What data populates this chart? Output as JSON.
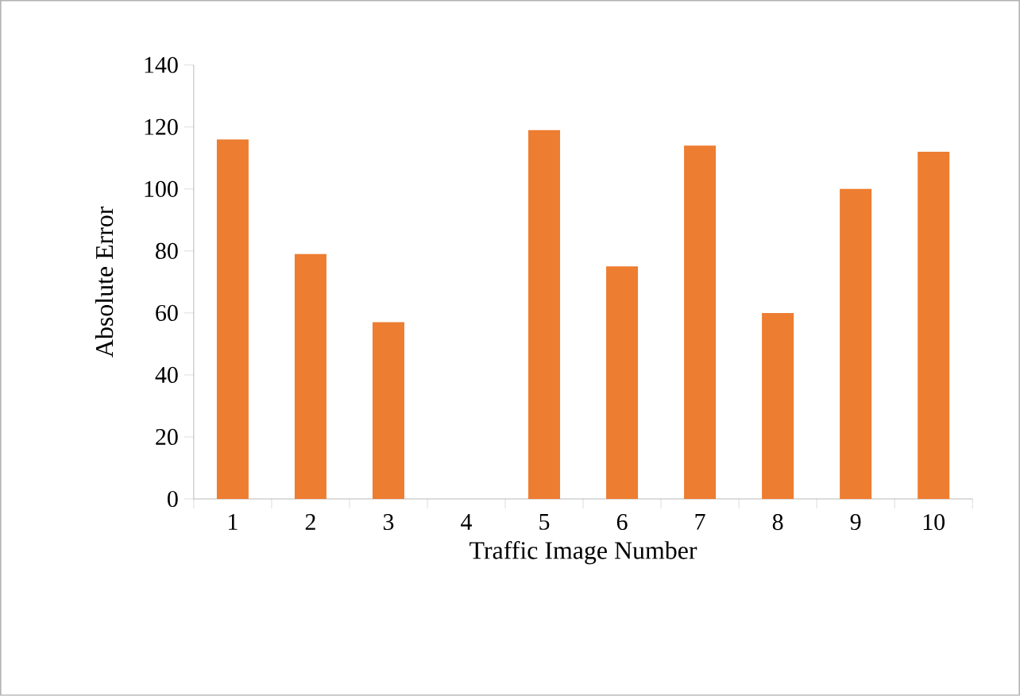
{
  "chart_data": {
    "type": "bar",
    "xlabel": "Traffic Image Number",
    "ylabel": "Absolute Error",
    "categories": [
      "1",
      "2",
      "3",
      "4",
      "5",
      "6",
      "7",
      "8",
      "9",
      "10"
    ],
    "values": [
      116,
      79,
      57,
      0,
      119,
      75,
      114,
      60,
      100,
      112
    ],
    "color": "#ed7d31",
    "ylim": [
      0,
      140
    ],
    "yticks": [
      0,
      20,
      40,
      60,
      80,
      100,
      120,
      140
    ],
    "grid": false
  }
}
